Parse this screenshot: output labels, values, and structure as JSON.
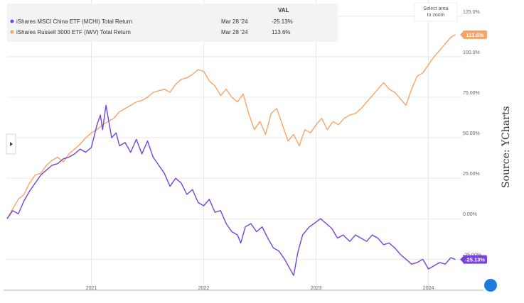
{
  "legend": {
    "header_val": "VAL",
    "items": [
      {
        "label": "iShares MSCI China ETF (MCHI) Total Return",
        "date": "Mar 28 '24",
        "value": "-25.13%",
        "color": "#7743d6"
      },
      {
        "label": "iShares Russell 3000 ETF (IWV) Total Return",
        "date": "Mar 28 '24",
        "value": "113.6%",
        "color": "#f5a46b"
      }
    ]
  },
  "zoom_hint": [
    "Select area",
    "to zoom"
  ],
  "source": "Source:  YCharts",
  "chart_data": {
    "type": "line",
    "x_ticks": [
      2021,
      2022,
      2023,
      2024
    ],
    "y_ticks": [
      "125.0%",
      "100.0%",
      "75.00%",
      "50.00%",
      "25.00%",
      "0.00%",
      "-25.00%"
    ],
    "y_tick_values": [
      125,
      100,
      75,
      50,
      25,
      0,
      -25
    ],
    "ylim": [
      -38,
      135
    ],
    "xlim": [
      2020.25,
      2024.3
    ],
    "grid": true,
    "series": [
      {
        "name": "iShares MSCI China ETF (MCHI) Total Return",
        "color": "#7743d6",
        "end_label": "-25.13%",
        "points": [
          [
            2020.25,
            0
          ],
          [
            2020.3,
            5
          ],
          [
            2020.35,
            3
          ],
          [
            2020.4,
            11
          ],
          [
            2020.45,
            17
          ],
          [
            2020.5,
            22
          ],
          [
            2020.55,
            27
          ],
          [
            2020.6,
            30
          ],
          [
            2020.65,
            33
          ],
          [
            2020.7,
            34
          ],
          [
            2020.75,
            37
          ],
          [
            2020.8,
            38
          ],
          [
            2020.85,
            40
          ],
          [
            2020.9,
            43
          ],
          [
            2020.95,
            41
          ],
          [
            2021.0,
            44
          ],
          [
            2021.05,
            58
          ],
          [
            2021.08,
            64
          ],
          [
            2021.1,
            55
          ],
          [
            2021.13,
            70
          ],
          [
            2021.18,
            50
          ],
          [
            2021.22,
            53
          ],
          [
            2021.25,
            45
          ],
          [
            2021.3,
            47
          ],
          [
            2021.35,
            41
          ],
          [
            2021.4,
            49
          ],
          [
            2021.45,
            40
          ],
          [
            2021.5,
            48
          ],
          [
            2021.55,
            38
          ],
          [
            2021.6,
            33
          ],
          [
            2021.65,
            28
          ],
          [
            2021.7,
            20
          ],
          [
            2021.75,
            25
          ],
          [
            2021.8,
            22
          ],
          [
            2021.85,
            15
          ],
          [
            2021.9,
            18
          ],
          [
            2021.95,
            10
          ],
          [
            2022.0,
            8
          ],
          [
            2022.05,
            12
          ],
          [
            2022.1,
            4
          ],
          [
            2022.15,
            5
          ],
          [
            2022.2,
            -3
          ],
          [
            2022.25,
            -8
          ],
          [
            2022.3,
            -10
          ],
          [
            2022.33,
            -15
          ],
          [
            2022.37,
            -5
          ],
          [
            2022.42,
            -3
          ],
          [
            2022.47,
            -8
          ],
          [
            2022.52,
            -5
          ],
          [
            2022.57,
            -12
          ],
          [
            2022.62,
            -18
          ],
          [
            2022.67,
            -20
          ],
          [
            2022.72,
            -25
          ],
          [
            2022.76,
            -30
          ],
          [
            2022.8,
            -35
          ],
          [
            2022.84,
            -20
          ],
          [
            2022.88,
            -10
          ],
          [
            2022.94,
            -5
          ],
          [
            2023.0,
            -2
          ],
          [
            2023.04,
            0
          ],
          [
            2023.09,
            -3
          ],
          [
            2023.14,
            -6
          ],
          [
            2023.19,
            -12
          ],
          [
            2023.24,
            -10
          ],
          [
            2023.3,
            -14
          ],
          [
            2023.35,
            -10
          ],
          [
            2023.4,
            -12
          ],
          [
            2023.45,
            -14
          ],
          [
            2023.5,
            -10
          ],
          [
            2023.55,
            -12
          ],
          [
            2023.6,
            -16
          ],
          [
            2023.65,
            -15
          ],
          [
            2023.7,
            -18
          ],
          [
            2023.75,
            -22
          ],
          [
            2023.8,
            -25
          ],
          [
            2023.85,
            -28
          ],
          [
            2023.9,
            -27
          ],
          [
            2023.95,
            -25
          ],
          [
            2024.0,
            -31
          ],
          [
            2024.05,
            -29
          ],
          [
            2024.1,
            -27
          ],
          [
            2024.15,
            -28
          ],
          [
            2024.2,
            -24
          ],
          [
            2024.24,
            -25.13
          ]
        ]
      },
      {
        "name": "iShares Russell 3000 ETF (IWV) Total Return",
        "color": "#f5a46b",
        "end_label": "113.6%",
        "points": [
          [
            2020.25,
            0
          ],
          [
            2020.3,
            6
          ],
          [
            2020.35,
            12
          ],
          [
            2020.4,
            15
          ],
          [
            2020.45,
            22
          ],
          [
            2020.5,
            27
          ],
          [
            2020.55,
            28
          ],
          [
            2020.6,
            33
          ],
          [
            2020.65,
            36
          ],
          [
            2020.7,
            38
          ],
          [
            2020.75,
            35
          ],
          [
            2020.8,
            40
          ],
          [
            2020.85,
            43
          ],
          [
            2020.9,
            46
          ],
          [
            2020.95,
            50
          ],
          [
            2021.0,
            53
          ],
          [
            2021.05,
            55
          ],
          [
            2021.1,
            58
          ],
          [
            2021.15,
            60
          ],
          [
            2021.2,
            62
          ],
          [
            2021.25,
            66
          ],
          [
            2021.3,
            68
          ],
          [
            2021.35,
            70
          ],
          [
            2021.4,
            72
          ],
          [
            2021.45,
            73
          ],
          [
            2021.5,
            75
          ],
          [
            2021.55,
            78
          ],
          [
            2021.6,
            79
          ],
          [
            2021.65,
            80
          ],
          [
            2021.7,
            78
          ],
          [
            2021.75,
            83
          ],
          [
            2021.8,
            86
          ],
          [
            2021.85,
            87
          ],
          [
            2021.9,
            89
          ],
          [
            2021.95,
            92
          ],
          [
            2022.0,
            91
          ],
          [
            2022.05,
            85
          ],
          [
            2022.1,
            82
          ],
          [
            2022.15,
            76
          ],
          [
            2022.2,
            80
          ],
          [
            2022.25,
            75
          ],
          [
            2022.3,
            72
          ],
          [
            2022.35,
            77
          ],
          [
            2022.4,
            65
          ],
          [
            2022.45,
            55
          ],
          [
            2022.5,
            60
          ],
          [
            2022.55,
            52
          ],
          [
            2022.6,
            65
          ],
          [
            2022.65,
            68
          ],
          [
            2022.7,
            58
          ],
          [
            2022.75,
            48
          ],
          [
            2022.8,
            52
          ],
          [
            2022.85,
            45
          ],
          [
            2022.9,
            55
          ],
          [
            2022.95,
            53
          ],
          [
            2023.0,
            58
          ],
          [
            2023.05,
            62
          ],
          [
            2023.1,
            55
          ],
          [
            2023.15,
            60
          ],
          [
            2023.2,
            58
          ],
          [
            2023.25,
            62
          ],
          [
            2023.3,
            64
          ],
          [
            2023.35,
            65
          ],
          [
            2023.4,
            68
          ],
          [
            2023.45,
            72
          ],
          [
            2023.5,
            76
          ],
          [
            2023.55,
            80
          ],
          [
            2023.6,
            84
          ],
          [
            2023.65,
            80
          ],
          [
            2023.7,
            78
          ],
          [
            2023.75,
            74
          ],
          [
            2023.8,
            70
          ],
          [
            2023.85,
            80
          ],
          [
            2023.9,
            88
          ],
          [
            2023.95,
            90
          ],
          [
            2024.0,
            95
          ],
          [
            2024.05,
            100
          ],
          [
            2024.1,
            104
          ],
          [
            2024.15,
            108
          ],
          [
            2024.2,
            112
          ],
          [
            2024.24,
            113.6
          ]
        ]
      }
    ]
  }
}
